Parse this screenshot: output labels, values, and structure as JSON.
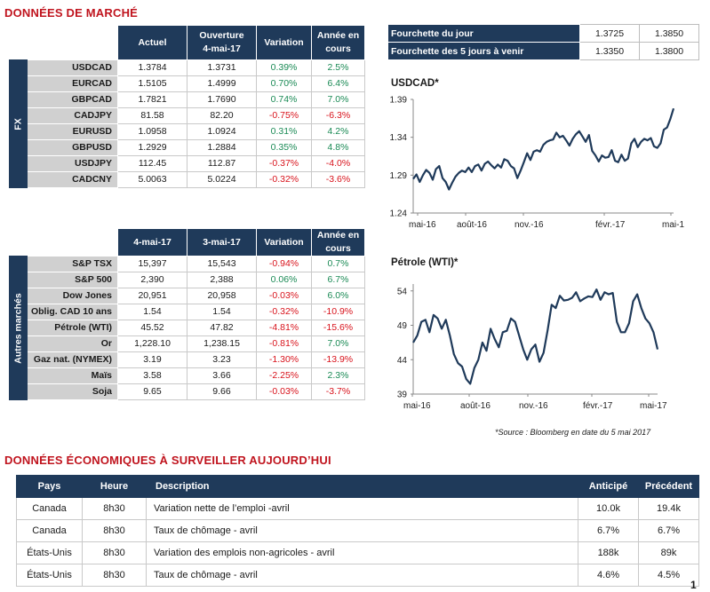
{
  "market": {
    "title": "DONNÉES DE MARCHÉ",
    "fx": {
      "sidebar_label": "FX",
      "headers": [
        "Actuel",
        "Ouverture\n4-mai-17",
        "Variation",
        "Année en\ncours"
      ],
      "rows": [
        {
          "label": "USDCAD",
          "c1": "1.3784",
          "c2": "1.3731",
          "var": "0.39%",
          "ytd": "2.5%",
          "var_neg": false,
          "ytd_neg": false
        },
        {
          "label": "EURCAD",
          "c1": "1.5105",
          "c2": "1.4999",
          "var": "0.70%",
          "ytd": "6.4%",
          "var_neg": false,
          "ytd_neg": false
        },
        {
          "label": "GBPCAD",
          "c1": "1.7821",
          "c2": "1.7690",
          "var": "0.74%",
          "ytd": "7.0%",
          "var_neg": false,
          "ytd_neg": false
        },
        {
          "label": "CADJPY",
          "c1": "81.58",
          "c2": "82.20",
          "var": "-0.75%",
          "ytd": "-6.3%",
          "var_neg": true,
          "ytd_neg": true
        },
        {
          "label": "EURUSD",
          "c1": "1.0958",
          "c2": "1.0924",
          "var": "0.31%",
          "ytd": "4.2%",
          "var_neg": false,
          "ytd_neg": false
        },
        {
          "label": "GBPUSD",
          "c1": "1.2929",
          "c2": "1.2884",
          "var": "0.35%",
          "ytd": "4.8%",
          "var_neg": false,
          "ytd_neg": false
        },
        {
          "label": "USDJPY",
          "c1": "112.45",
          "c2": "112.87",
          "var": "-0.37%",
          "ytd": "-4.0%",
          "var_neg": true,
          "ytd_neg": true
        },
        {
          "label": "CADCNY",
          "c1": "5.0063",
          "c2": "5.0224",
          "var": "-0.32%",
          "ytd": "-3.6%",
          "var_neg": true,
          "ytd_neg": true
        }
      ]
    },
    "other": {
      "sidebar_label": "Autres marchés",
      "headers": [
        "4-mai-17",
        "3-mai-17",
        "Variation",
        "Année en\ncours"
      ],
      "rows": [
        {
          "label": "S&P TSX",
          "c1": "15,397",
          "c2": "15,543",
          "var": "-0.94%",
          "ytd": "0.7%",
          "var_neg": true,
          "ytd_neg": false
        },
        {
          "label": "S&P 500",
          "c1": "2,390",
          "c2": "2,388",
          "var": "0.06%",
          "ytd": "6.7%",
          "var_neg": false,
          "ytd_neg": false
        },
        {
          "label": "Dow Jones",
          "c1": "20,951",
          "c2": "20,958",
          "var": "-0.03%",
          "ytd": "6.0%",
          "var_neg": true,
          "ytd_neg": false
        },
        {
          "label": "Oblig. CAD 10 ans",
          "c1": "1.54",
          "c2": "1.54",
          "var": "-0.32%",
          "ytd": "-10.9%",
          "var_neg": true,
          "ytd_neg": true
        },
        {
          "label": "Pétrole (WTI)",
          "c1": "45.52",
          "c2": "47.82",
          "var": "-4.81%",
          "ytd": "-15.6%",
          "var_neg": true,
          "ytd_neg": true
        },
        {
          "label": "Or",
          "c1": "1,228.10",
          "c2": "1,238.15",
          "var": "-0.81%",
          "ytd": "7.0%",
          "var_neg": true,
          "ytd_neg": false
        },
        {
          "label": "Gaz nat. (NYMEX)",
          "c1": "3.19",
          "c2": "3.23",
          "var": "-1.30%",
          "ytd": "-13.9%",
          "var_neg": true,
          "ytd_neg": true
        },
        {
          "label": "Maïs",
          "c1": "3.58",
          "c2": "3.66",
          "var": "-2.25%",
          "ytd": "2.3%",
          "var_neg": true,
          "ytd_neg": false
        },
        {
          "label": "Soja",
          "c1": "9.65",
          "c2": "9.66",
          "var": "-0.03%",
          "ytd": "-3.7%",
          "var_neg": true,
          "ytd_neg": true
        }
      ]
    }
  },
  "ranges": [
    {
      "label": "Fourchette du jour",
      "low": "1.3725",
      "high": "1.3850"
    },
    {
      "label": "Fourchette des 5 jours à venir",
      "low": "1.3350",
      "high": "1.3800"
    }
  ],
  "source_note": "*Source : Bloomberg en date du  5 mai 2017",
  "economic": {
    "title": "DONNÉES ÉCONOMIQUES À SURVEILLER AUJOURD’HUI",
    "headers": {
      "country": "Pays",
      "time": "Heure",
      "desc": "Description",
      "expected": "Anticipé",
      "previous": "Précédent"
    },
    "rows": [
      {
        "country": "Canada",
        "time": "8h30",
        "desc": "Variation nette de l’emploi -avril",
        "expected": "10.0k",
        "previous": "19.4k"
      },
      {
        "country": "Canada",
        "time": "8h30",
        "desc": "Taux de chômage - avril",
        "expected": "6.7%",
        "previous": "6.7%"
      },
      {
        "country": "États-Unis",
        "time": "8h30",
        "desc": "Variation des emplois non-agricoles - avril",
        "expected": "188k",
        "previous": "89k"
      },
      {
        "country": "États-Unis",
        "time": "8h30",
        "desc": "Taux de chômage - avril",
        "expected": "4.6%",
        "previous": "4.5%"
      }
    ]
  },
  "page_number": "1",
  "colors": {
    "navy": "#1f3a5a",
    "negative": "#d8121b",
    "positive": "#1a8a55",
    "title_red": "#c0141e"
  },
  "chart_data": [
    {
      "type": "line",
      "title": "USDCAD*",
      "x_ticks": [
        "mai-16",
        "août-16",
        "nov.-16",
        "févr.-17",
        "mai-1"
      ],
      "y_ticks": [
        "1.24",
        "1.29",
        "1.34",
        "1.39"
      ],
      "ylim": [
        1.24,
        1.39
      ],
      "x_range": [
        0,
        12
      ],
      "series": [
        {
          "x": [
            0,
            0.15,
            0.3,
            0.45,
            0.6,
            0.75,
            0.9,
            1.05,
            1.2,
            1.35,
            1.5,
            1.65,
            1.8,
            1.95,
            2.1,
            2.25,
            2.4,
            2.55,
            2.7,
            2.85,
            3.0,
            3.15,
            3.3,
            3.45,
            3.6,
            3.75,
            3.9,
            4.05,
            4.2,
            4.35,
            4.5,
            4.65,
            4.8,
            4.95,
            5.1,
            5.25,
            5.4,
            5.55,
            5.7,
            5.85,
            6.0,
            6.15,
            6.3,
            6.45,
            6.6,
            6.75,
            6.9,
            7.05,
            7.2,
            7.35,
            7.5,
            7.65,
            7.8,
            7.95,
            8.1,
            8.25,
            8.4,
            8.55,
            8.7,
            8.85,
            9.0,
            9.15,
            9.3,
            9.45,
            9.6,
            9.75,
            9.9,
            10.05,
            10.2,
            10.35,
            10.5,
            10.65,
            10.8,
            10.95,
            11.1,
            11.25,
            11.4,
            11.55,
            11.7,
            11.85,
            12.0
          ],
          "values": [
            1.285,
            1.291,
            1.281,
            1.29,
            1.297,
            1.293,
            1.284,
            1.298,
            1.302,
            1.286,
            1.281,
            1.271,
            1.28,
            1.288,
            1.293,
            1.296,
            1.294,
            1.3,
            1.294,
            1.302,
            1.304,
            1.296,
            1.305,
            1.308,
            1.303,
            1.299,
            1.304,
            1.3,
            1.311,
            1.309,
            1.302,
            1.299,
            1.286,
            1.296,
            1.307,
            1.319,
            1.31,
            1.321,
            1.323,
            1.321,
            1.33,
            1.334,
            1.336,
            1.337,
            1.346,
            1.34,
            1.342,
            1.336,
            1.329,
            1.338,
            1.344,
            1.348,
            1.341,
            1.334,
            1.343,
            1.322,
            1.316,
            1.308,
            1.316,
            1.313,
            1.314,
            1.323,
            1.309,
            1.307,
            1.317,
            1.309,
            1.312,
            1.332,
            1.338,
            1.327,
            1.334,
            1.338,
            1.336,
            1.339,
            1.328,
            1.326,
            1.332,
            1.35,
            1.353,
            1.364,
            1.378
          ]
        }
      ]
    },
    {
      "type": "line",
      "title": "Pétrole (WTI)*",
      "x_ticks": [
        "mai-16",
        "août-16",
        "nov.-16",
        "févr.-17",
        "mai-17"
      ],
      "y_ticks": [
        "39",
        "44",
        "49",
        "54"
      ],
      "ylim": [
        39,
        55
      ],
      "x_range": [
        0,
        12
      ],
      "series": [
        {
          "x": [
            0,
            0.2,
            0.4,
            0.6,
            0.8,
            1.0,
            1.2,
            1.4,
            1.6,
            1.8,
            2.0,
            2.2,
            2.4,
            2.6,
            2.8,
            3.0,
            3.2,
            3.4,
            3.6,
            3.8,
            4.0,
            4.2,
            4.4,
            4.6,
            4.8,
            5.0,
            5.2,
            5.4,
            5.6,
            5.8,
            6.0,
            6.2,
            6.4,
            6.6,
            6.8,
            7.0,
            7.2,
            7.4,
            7.6,
            7.8,
            8.0,
            8.2,
            8.4,
            8.6,
            8.8,
            9.0,
            9.2,
            9.4,
            9.6,
            9.8,
            10.0,
            10.2,
            10.4,
            10.6,
            10.8,
            11.0,
            11.2,
            11.4,
            11.6,
            11.8,
            12.0
          ],
          "values": [
            46.5,
            47.5,
            49.5,
            49.8,
            48.0,
            50.5,
            50.0,
            48.5,
            49.8,
            47.5,
            44.8,
            43.5,
            43.0,
            41.2,
            40.5,
            42.8,
            44.0,
            46.5,
            45.3,
            48.5,
            47.0,
            45.8,
            48.0,
            48.2,
            50.0,
            49.5,
            47.5,
            45.5,
            44.0,
            45.5,
            46.2,
            43.7,
            45.0,
            48.3,
            52.0,
            51.5,
            53.3,
            52.6,
            52.7,
            53.0,
            53.8,
            52.5,
            52.9,
            53.2,
            53.1,
            54.2,
            52.7,
            53.8,
            53.5,
            53.7,
            49.5,
            48.0,
            48.0,
            49.3,
            52.5,
            53.5,
            51.5,
            50.0,
            49.3,
            48.0,
            45.5
          ]
        }
      ]
    }
  ]
}
